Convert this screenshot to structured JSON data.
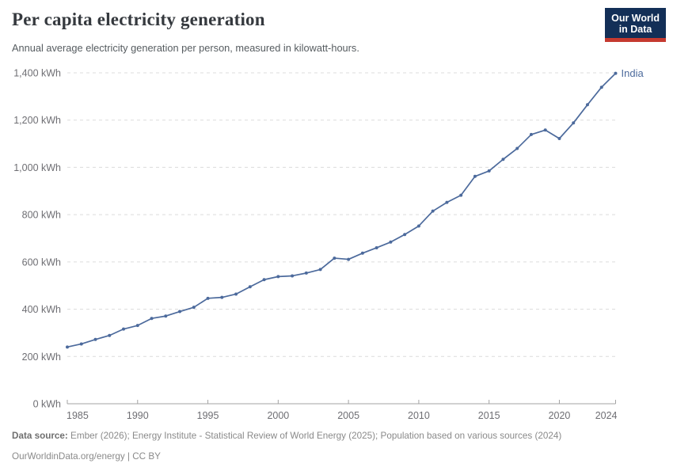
{
  "header": {
    "title": "Per capita electricity generation",
    "subtitle": "Annual average electricity generation per person, measured in kilowatt-hours.",
    "logo": {
      "line1": "Our World",
      "line2": "in Data"
    }
  },
  "chart_data": {
    "type": "line",
    "title": "Per capita electricity generation",
    "unit": "kWh",
    "xlabel": "",
    "ylabel": "",
    "xlim": [
      1985,
      2024
    ],
    "ylim": [
      0,
      1400
    ],
    "x_ticks": [
      1985,
      1990,
      1995,
      2000,
      2005,
      2010,
      2015,
      2020,
      2024
    ],
    "y_ticks": [
      0,
      200,
      400,
      600,
      800,
      1000,
      1200,
      1400
    ],
    "grid": "horizontal-dashed",
    "legend_position": "end-of-line-label",
    "series": [
      {
        "name": "India",
        "color": "#4c6a9c",
        "x": [
          1985,
          1986,
          1987,
          1988,
          1989,
          1990,
          1991,
          1992,
          1993,
          1994,
          1995,
          1996,
          1997,
          1998,
          1999,
          2000,
          2001,
          2002,
          2003,
          2004,
          2005,
          2006,
          2007,
          2008,
          2009,
          2010,
          2011,
          2012,
          2013,
          2014,
          2015,
          2016,
          2017,
          2018,
          2019,
          2020,
          2021,
          2022,
          2023,
          2024
        ],
        "values": [
          240,
          253,
          272,
          289,
          316,
          331,
          361,
          371,
          390,
          408,
          446,
          450,
          464,
          495,
          525,
          538,
          541,
          553,
          568,
          616,
          611,
          637,
          660,
          684,
          716,
          752,
          815,
          852,
          882,
          962,
          985,
          1034,
          1080,
          1139,
          1158,
          1122,
          1188,
          1265,
          1339,
          1398
        ]
      }
    ]
  },
  "footer": {
    "source_label": "Data source:",
    "source_text": " Ember (2026); Energy Institute - Statistical Review of World Energy (2025); Population based on various sources (2024)",
    "link_line": "OurWorldinData.org/energy | CC BY"
  },
  "colors": {
    "line": "#4c6a9c",
    "grid": "#dcdcdc",
    "axis": "#a3a3a3",
    "tick_text": "#6e6e73",
    "logo_bg": "#132f57",
    "logo_red": "#c5392f"
  }
}
